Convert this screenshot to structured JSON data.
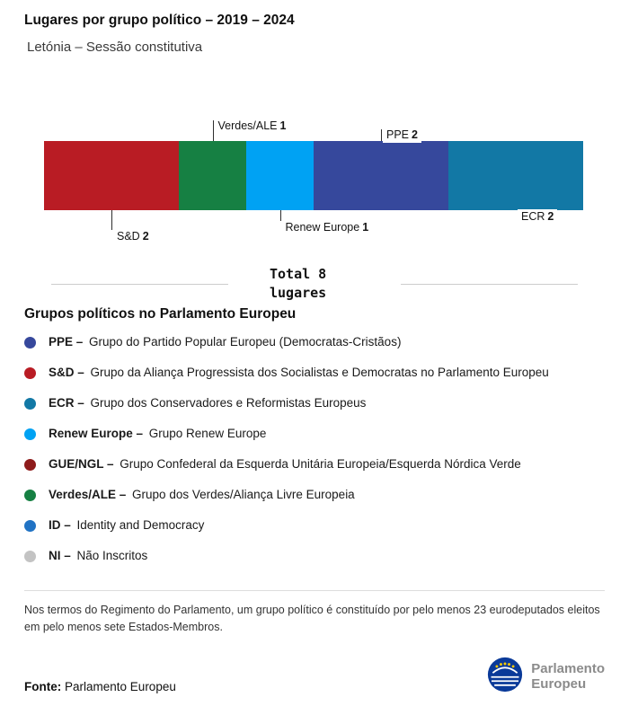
{
  "header": {
    "title": "Lugares por grupo político – 2019 – 2024",
    "subtitle": "Letónia – Sessão constitutiva"
  },
  "chart_data": {
    "type": "bar",
    "variant": "horizontal-stacked-seat-bar",
    "title": "Lugares por grupo político – 2019 – 2024",
    "subtitle": "Letónia – Sessão constitutiva",
    "total_seats": 8,
    "total_label": "Total 8 lugares",
    "legend_position": "below",
    "series": [
      {
        "name": "S&D",
        "seats": 2,
        "color": "#b91c24",
        "callout_side": "bottom",
        "callout_line": 22
      },
      {
        "name": "Verdes/ALE",
        "seats": 1,
        "color": "#168043",
        "callout_side": "top",
        "callout_line": 23
      },
      {
        "name": "Renew Europe",
        "seats": 1,
        "color": "#00a2f3",
        "callout_side": "bottom",
        "callout_line": 12
      },
      {
        "name": "PPE",
        "seats": 2,
        "color": "#36489c",
        "callout_side": "top",
        "callout_line": 13
      },
      {
        "name": "ECR",
        "seats": 2,
        "color": "#1278a5",
        "callout_side": "bottom",
        "callout_line": 0
      }
    ]
  },
  "legend": {
    "heading": "Grupos políticos no Parlamento Europeu",
    "items": [
      {
        "abbr": "PPE –",
        "desc": "Grupo do Partido Popular Europeu (Democratas-Cristãos)",
        "color": "#36489c"
      },
      {
        "abbr": "S&D –",
        "desc": "Grupo da Aliança Progressista dos Socialistas e Democratas no Parlamento Europeu",
        "color": "#b91c24"
      },
      {
        "abbr": "ECR –",
        "desc": "Grupo dos Conservadores e Reformistas Europeus",
        "color": "#1278a5"
      },
      {
        "abbr": "Renew Europe –",
        "desc": "Grupo Renew Europe",
        "color": "#00a2f3"
      },
      {
        "abbr": "GUE/NGL –",
        "desc": "Grupo Confederal da Esquerda Unitária Europeia/Esquerda Nórdica Verde",
        "color": "#8e1b1b"
      },
      {
        "abbr": "Verdes/ALE –",
        "desc": "Grupo dos Verdes/Aliança Livre Europeia",
        "color": "#168043"
      },
      {
        "abbr": "ID –",
        "desc": "Identity and Democracy",
        "color": "#2173c4"
      },
      {
        "abbr": "NI –",
        "desc": "Não Inscritos",
        "color": "#c3c3c3"
      }
    ]
  },
  "footnote": "Nos termos do Regimento do Parlamento, um grupo político é constituído por pelo menos 23 eurodeputados eleitos em pelo menos sete Estados-Membros.",
  "source": {
    "label": "Fonte:",
    "value": "Parlamento Europeu"
  },
  "logo": {
    "line1": "Parlamento",
    "line2": "Europeu",
    "flag_blue": "#0a3a99",
    "star_yellow": "#ffcc00"
  }
}
